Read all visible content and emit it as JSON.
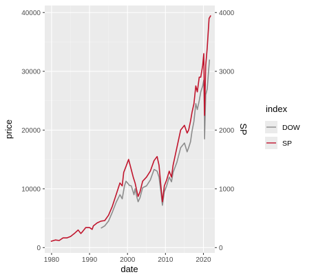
{
  "chart_data": {
    "type": "line",
    "xlabel": "date",
    "ylabel": "price",
    "y2label": "SP",
    "xlim": [
      1978.2,
      2023.0
    ],
    "ylim": [
      -900,
      41200
    ],
    "y2lim": [
      -90,
      4120
    ],
    "x_ticks": [
      1980,
      1990,
      2000,
      2010,
      2020
    ],
    "y_ticks": [
      0,
      10000,
      20000,
      30000,
      40000
    ],
    "y2_ticks": [
      0,
      1000,
      2000,
      3000,
      4000
    ],
    "grid": true,
    "legend": {
      "title": "index",
      "placement": "right",
      "entries": [
        {
          "label": "DOW",
          "color": "#8c8c8c"
        },
        {
          "label": "SP",
          "color": "#c0142c"
        }
      ]
    },
    "series": [
      {
        "name": "DOW",
        "color": "#8c8c8c",
        "x": [
          1993.0,
          1994.0,
          1995.0,
          1996.0,
          1997.0,
          1998.0,
          1998.6,
          1999.2,
          1999.6,
          2000.0,
          2000.5,
          2001.0,
          2001.7,
          2002.0,
          2002.5,
          2002.8,
          2003.3,
          2004.0,
          2005.0,
          2006.0,
          2007.0,
          2007.8,
          2008.3,
          2008.8,
          2009.2,
          2009.7,
          2010.3,
          2011.0,
          2011.6,
          2012.0,
          2013.0,
          2014.0,
          2015.0,
          2015.7,
          2016.1,
          2016.6,
          2017.0,
          2017.5,
          2018.0,
          2018.4,
          2018.9,
          2019.3,
          2019.8,
          2020.1,
          2020.2,
          2020.3,
          2020.6,
          2021.0,
          2021.3,
          2021.6
        ],
        "y": [
          3300,
          3700,
          4500,
          6000,
          7700,
          9000,
          8300,
          10500,
          11300,
          11000,
          10600,
          10500,
          9000,
          10000,
          8500,
          7800,
          8500,
          10200,
          10500,
          11500,
          13300,
          13000,
          12000,
          9500,
          7200,
          9500,
          10500,
          12000,
          11200,
          12800,
          14500,
          17000,
          17800,
          16300,
          17000,
          18000,
          19800,
          21500,
          24500,
          23500,
          25000,
          26500,
          27500,
          28500,
          24000,
          18500,
          26000,
          27000,
          29500,
          32000
        ]
      },
      {
        "name": "SP",
        "color": "#c0142c",
        "x": [
          1979.8,
          1981.0,
          1982.0,
          1983.0,
          1984.0,
          1985.0,
          1986.0,
          1987.0,
          1987.7,
          1988.0,
          1989.0,
          1990.0,
          1990.7,
          1991.0,
          1992.0,
          1993.0,
          1994.0,
          1995.0,
          1996.0,
          1997.0,
          1998.0,
          1998.6,
          1999.0,
          1999.6,
          2000.0,
          2000.3,
          2000.9,
          2001.5,
          2002.0,
          2002.5,
          2002.8,
          2003.3,
          2004.0,
          2005.0,
          2006.0,
          2007.0,
          2007.8,
          2008.3,
          2008.8,
          2009.2,
          2009.7,
          2010.3,
          2011.0,
          2011.6,
          2012.0,
          2013.0,
          2014.0,
          2015.0,
          2015.7,
          2016.1,
          2016.6,
          2017.0,
          2017.5,
          2018.0,
          2018.4,
          2018.9,
          2019.3,
          2019.8,
          2020.1,
          2020.2,
          2020.3,
          2020.6,
          2021.0,
          2021.5,
          2021.95
        ],
        "y": [
          105,
          130,
          120,
          165,
          165,
          190,
          240,
          300,
          240,
          260,
          340,
          340,
          310,
          370,
          420,
          450,
          460,
          550,
          700,
          900,
          1100,
          1050,
          1280,
          1380,
          1450,
          1500,
          1350,
          1200,
          1100,
          950,
          870,
          950,
          1130,
          1200,
          1300,
          1480,
          1550,
          1400,
          1050,
          780,
          1050,
          1150,
          1300,
          1200,
          1400,
          1700,
          2000,
          2080,
          1950,
          2000,
          2150,
          2300,
          2450,
          2750,
          2650,
          2900,
          2900,
          3100,
          3300,
          2700,
          2250,
          3100,
          3400,
          3900,
          3950
        ]
      }
    ]
  }
}
